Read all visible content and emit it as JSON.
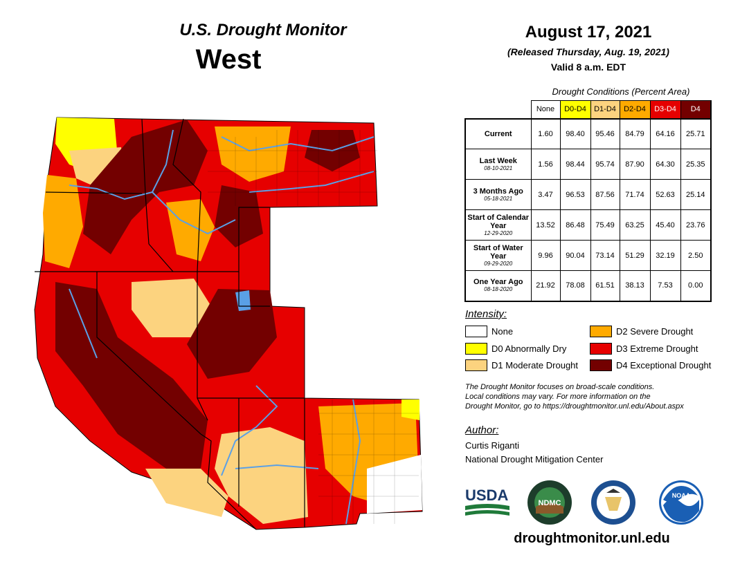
{
  "header": {
    "product": "U.S. Drought Monitor",
    "region": "West",
    "date": "August 17, 2021",
    "released": "(Released Thursday, Aug. 19, 2021)",
    "valid": "Valid 8 a.m. EDT"
  },
  "table": {
    "title": "Drought Conditions (Percent Area)",
    "columns": [
      "None",
      "D0-D4",
      "D1-D4",
      "D2-D4",
      "D3-D4",
      "D4"
    ],
    "column_colors": [
      "#ffffff",
      "#ffff00",
      "#fcd37f",
      "#ffaa00",
      "#e60000",
      "#730000"
    ],
    "column_text_colors": [
      "#000000",
      "#000000",
      "#000000",
      "#000000",
      "#ffffff",
      "#ffffff"
    ],
    "rows": [
      {
        "label": "Current",
        "sublabel": "",
        "values": [
          "1.60",
          "98.40",
          "95.46",
          "84.79",
          "64.16",
          "25.71"
        ]
      },
      {
        "label": "Last Week",
        "sublabel": "08-10-2021",
        "values": [
          "1.56",
          "98.44",
          "95.74",
          "87.90",
          "64.30",
          "25.35"
        ]
      },
      {
        "label": "3 Months Ago",
        "sublabel": "05-18-2021",
        "values": [
          "3.47",
          "96.53",
          "87.56",
          "71.74",
          "52.63",
          "25.14"
        ]
      },
      {
        "label": "Start of Calendar Year",
        "sublabel": "12-29-2020",
        "values": [
          "13.52",
          "86.48",
          "75.49",
          "63.25",
          "45.40",
          "23.76"
        ]
      },
      {
        "label": "Start of Water Year",
        "sublabel": "09-29-2020",
        "values": [
          "9.96",
          "90.04",
          "73.14",
          "51.29",
          "32.19",
          "2.50"
        ]
      },
      {
        "label": "One Year Ago",
        "sublabel": "08-18-2020",
        "values": [
          "21.92",
          "78.08",
          "61.51",
          "38.13",
          "7.53",
          "0.00"
        ]
      }
    ]
  },
  "legend": {
    "title": "Intensity:",
    "items": [
      {
        "label": "None",
        "color": "#ffffff"
      },
      {
        "label": "D0 Abnormally Dry",
        "color": "#ffff00"
      },
      {
        "label": "D1 Moderate Drought",
        "color": "#fcd37f"
      },
      {
        "label": "D2 Severe Drought",
        "color": "#ffaa00"
      },
      {
        "label": "D3 Extreme Drought",
        "color": "#e60000"
      },
      {
        "label": "D4 Exceptional Drought",
        "color": "#730000"
      }
    ]
  },
  "notes": {
    "line1": "The Drought Monitor focuses on broad-scale conditions.",
    "line2": "Local conditions may vary. For more information on the",
    "line3": "Drought Monitor, go to https://droughtmonitor.unl.edu/About.aspx"
  },
  "author": {
    "label": "Author:",
    "name": "Curtis Riganti",
    "org": "National Drought Mitigation Center"
  },
  "logos": {
    "usda": "USDA",
    "ndmc": "NDMC",
    "noaa": "NOAA"
  },
  "website": "droughtmonitor.unl.edu",
  "map_colors": {
    "none": "#ffffff",
    "d0": "#ffff00",
    "d1": "#fcd37f",
    "d2": "#ffaa00",
    "d3": "#e60000",
    "d4": "#730000",
    "water": "#5aa0e6"
  }
}
